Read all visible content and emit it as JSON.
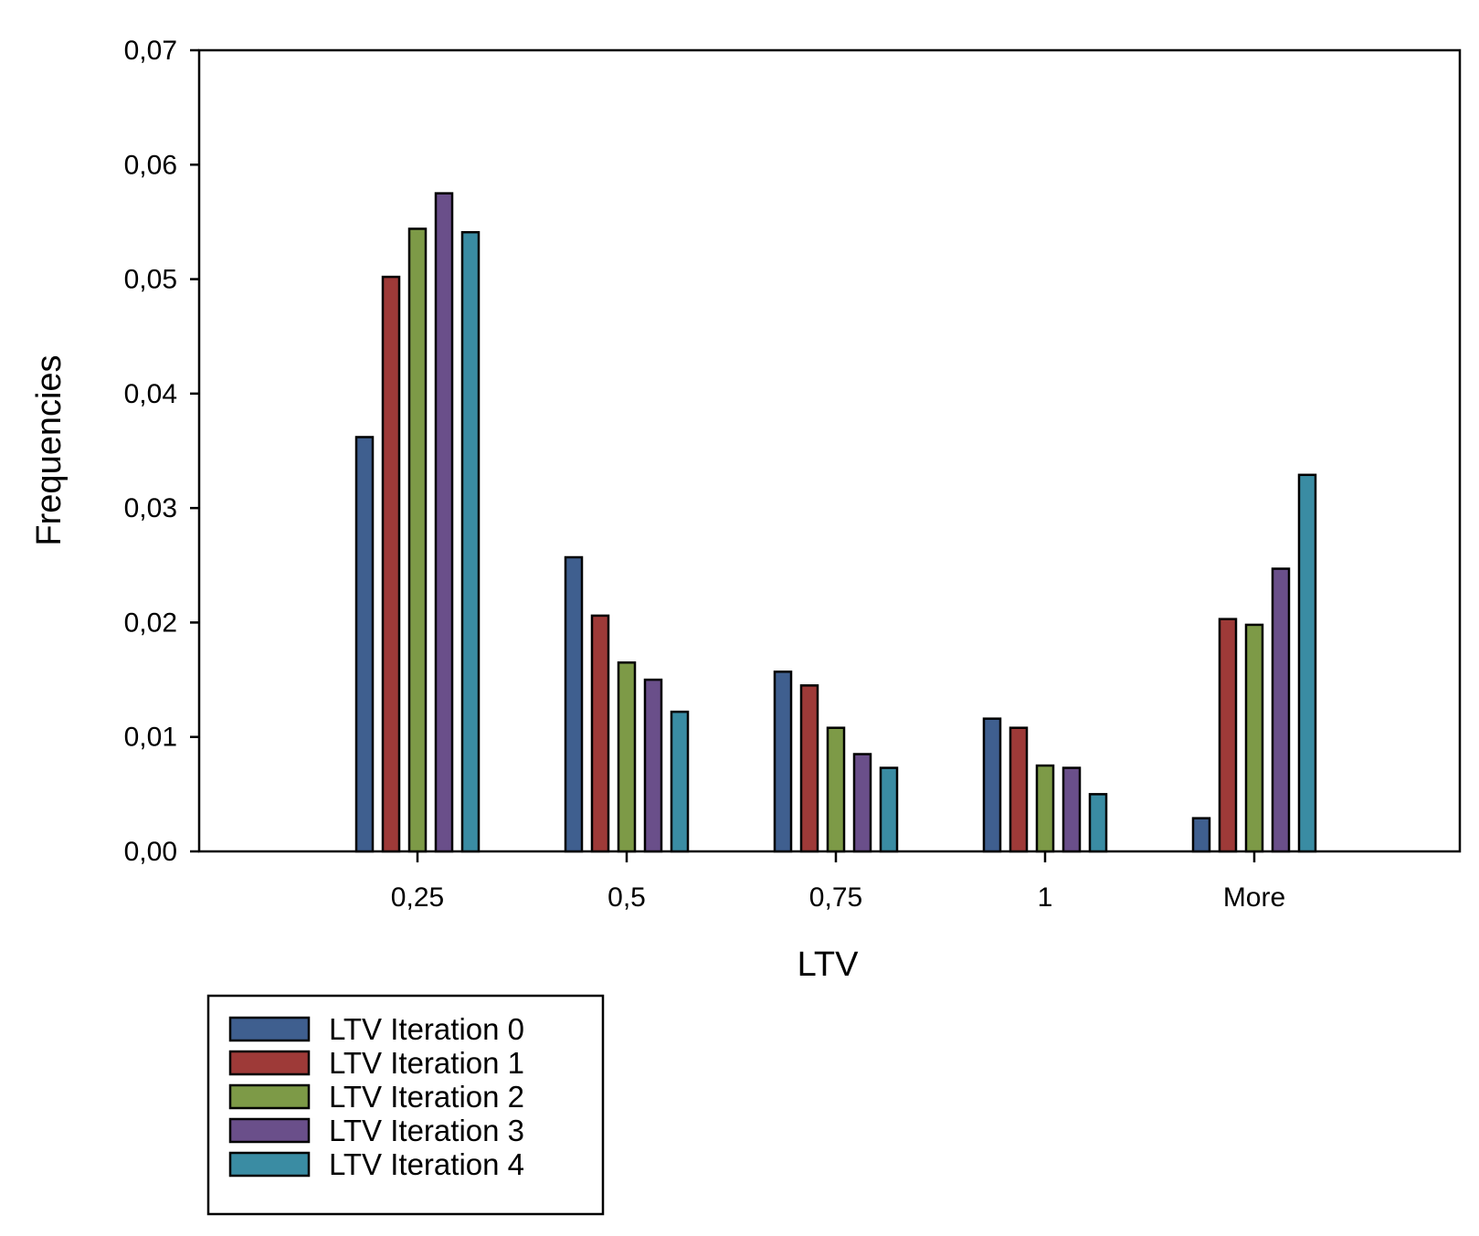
{
  "chart_data": {
    "type": "bar",
    "title": "",
    "xlabel": "LTV",
    "ylabel": "Frequencies",
    "ylim": [
      0,
      0.07
    ],
    "yticks": [
      0,
      0.01,
      0.02,
      0.03,
      0.04,
      0.05,
      0.06,
      0.07
    ],
    "ytick_labels": [
      "0,00",
      "0,01",
      "0,02",
      "0,03",
      "0,04",
      "0,05",
      "0,06",
      "0,07"
    ],
    "categories": [
      "0,25",
      "0,5",
      "0,75",
      "1",
      "More"
    ],
    "series": [
      {
        "name": "LTV Iteration 0",
        "color": "#3f5f8f",
        "values": [
          0.0362,
          0.0257,
          0.0157,
          0.0116,
          0.0029
        ]
      },
      {
        "name": "LTV Iteration 1",
        "color": "#9e3a38",
        "values": [
          0.0502,
          0.0206,
          0.0145,
          0.0108,
          0.0203
        ]
      },
      {
        "name": "LTV Iteration 2",
        "color": "#7d9a47",
        "values": [
          0.0544,
          0.0165,
          0.0108,
          0.0075,
          0.0198
        ]
      },
      {
        "name": "LTV Iteration 3",
        "color": "#6a4f8a",
        "values": [
          0.0575,
          0.015,
          0.0085,
          0.0073,
          0.0247
        ]
      },
      {
        "name": "LTV Iteration 4",
        "color": "#3a8ca3",
        "values": [
          0.0541,
          0.0122,
          0.0073,
          0.005,
          0.0329
        ]
      }
    ],
    "grid": false,
    "legend_position": "bottom-left"
  }
}
